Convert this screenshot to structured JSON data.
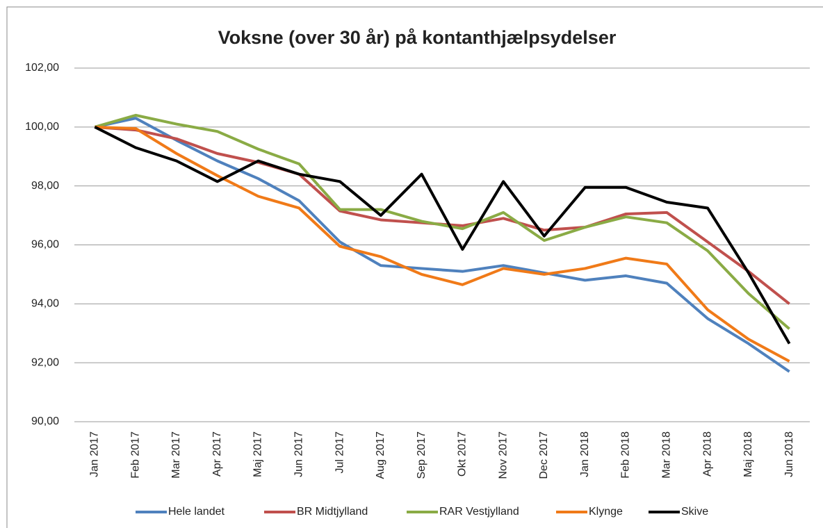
{
  "chart_data": {
    "type": "line",
    "title": "Voksne (over 30 år) på kontanthjælpsydelser",
    "categories": [
      "Jan 2017",
      "Feb 2017",
      "Mar 2017",
      "Apr 2017",
      "Maj 2017",
      "Jun 2017",
      "Jul 2017",
      "Aug 2017",
      "Sep 2017",
      "Okt 2017",
      "Nov 2017",
      "Dec 2017",
      "Jan 2018",
      "Feb 2018",
      "Mar 2018",
      "Apr 2018",
      "Maj 2018",
      "Jun 2018"
    ],
    "series": [
      {
        "name": "Hele landet",
        "color": "#4f81bd",
        "values": [
          100,
          100.3,
          99.55,
          98.85,
          98.25,
          97.5,
          96.1,
          95.3,
          95.2,
          95.1,
          95.3,
          95.05,
          94.8,
          94.95,
          94.7,
          93.5,
          92.65,
          91.7
        ]
      },
      {
        "name": "BR Midtjylland",
        "color": "#c0504d",
        "values": [
          100,
          99.9,
          99.6,
          99.1,
          98.8,
          98.4,
          97.15,
          96.85,
          96.75,
          96.65,
          96.9,
          96.5,
          96.6,
          97.05,
          97.1,
          96.1,
          95.1,
          94.0
        ]
      },
      {
        "name": "RAR Vestjylland",
        "color": "#8aab45",
        "values": [
          100,
          100.4,
          100.1,
          99.85,
          99.25,
          98.75,
          97.2,
          97.2,
          96.8,
          96.55,
          97.1,
          96.15,
          96.6,
          96.95,
          96.75,
          95.8,
          94.35,
          93.15
        ]
      },
      {
        "name": "Klynge",
        "color": "#f07a18",
        "values": [
          100,
          99.95,
          99.1,
          98.35,
          97.65,
          97.25,
          95.95,
          95.6,
          95.0,
          94.65,
          95.2,
          95.0,
          95.2,
          95.55,
          95.35,
          93.8,
          92.8,
          92.05
        ]
      },
      {
        "name": "Skive",
        "color": "#000000",
        "values": [
          100,
          99.3,
          98.85,
          98.15,
          98.85,
          98.4,
          98.15,
          97.0,
          98.4,
          95.85,
          98.15,
          96.3,
          97.95,
          97.95,
          97.45,
          97.25,
          95.05,
          92.65
        ]
      }
    ],
    "ylim": [
      90,
      102
    ],
    "yticks": [
      {
        "value": 90,
        "label": "90,00"
      },
      {
        "value": 92,
        "label": "92,00"
      },
      {
        "value": 94,
        "label": "94,00"
      },
      {
        "value": 96,
        "label": "96,00"
      },
      {
        "value": 98,
        "label": "98,00"
      },
      {
        "value": 100,
        "label": "100,00"
      },
      {
        "value": 102,
        "label": "102,00"
      }
    ],
    "grid": true,
    "legend": "bottom"
  }
}
